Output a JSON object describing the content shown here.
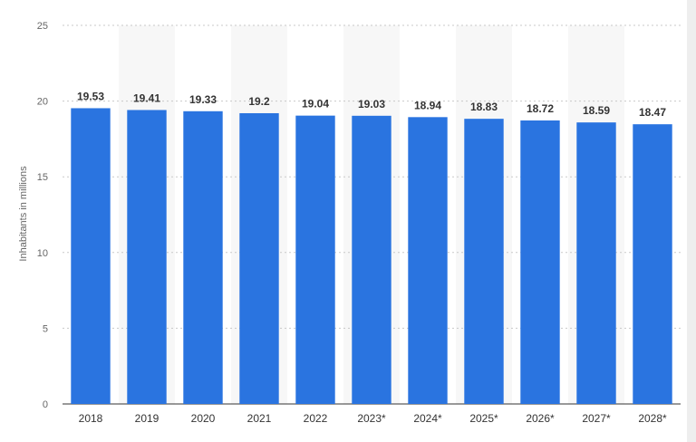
{
  "chart_data": {
    "type": "bar",
    "categories": [
      "2018",
      "2019",
      "2020",
      "2021",
      "2022",
      "2023*",
      "2024*",
      "2025*",
      "2026*",
      "2027*",
      "2028*"
    ],
    "values": [
      19.53,
      19.41,
      19.33,
      19.2,
      19.04,
      19.03,
      18.94,
      18.83,
      18.72,
      18.59,
      18.47
    ],
    "ylabel": "Inhabitants in millions",
    "ylim": [
      0,
      25
    ],
    "yticks": [
      0,
      5,
      10,
      15,
      20,
      25
    ],
    "grid": true,
    "bar_color": "#2a74e0"
  }
}
